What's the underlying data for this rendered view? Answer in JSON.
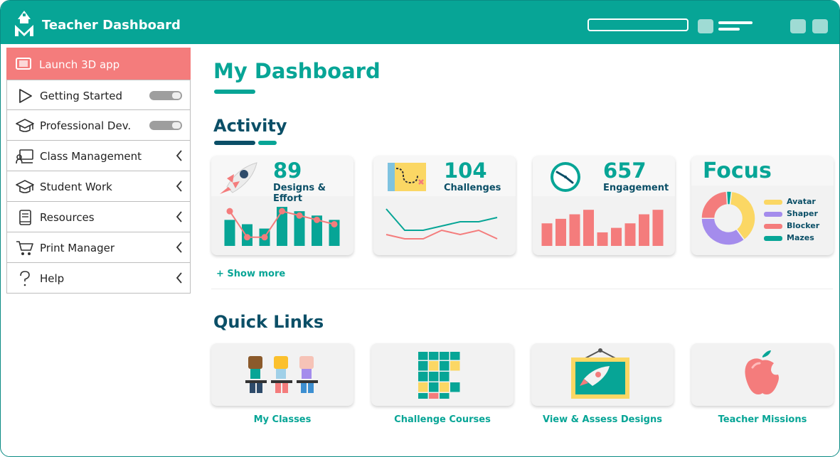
{
  "app": {
    "title": "Teacher Dashboard"
  },
  "sidebar": {
    "items": [
      {
        "label": "Launch 3D app",
        "icon": "monitor-icon"
      },
      {
        "label": "Getting Started",
        "icon": "play-icon",
        "control": "toggle"
      },
      {
        "label": "Professional Dev.",
        "icon": "graduation-cap-icon",
        "control": "toggle"
      },
      {
        "label": "Class Management",
        "icon": "teacher-board-icon",
        "control": "chevron"
      },
      {
        "label": "Student Work",
        "icon": "graduation-cap-icon",
        "control": "chevron"
      },
      {
        "label": "Resources",
        "icon": "book-icon",
        "control": "chevron"
      },
      {
        "label": "Print Manager",
        "icon": "cart-icon",
        "control": "chevron"
      },
      {
        "label": "Help",
        "icon": "question-icon",
        "control": "chevron"
      }
    ]
  },
  "main": {
    "title": "My Dashboard",
    "activity": {
      "title": "Activity",
      "cards": [
        {
          "value": "89",
          "label": "Designs & Effort",
          "icon": "rocket-icon"
        },
        {
          "value": "104",
          "label": "Challenges",
          "icon": "map-icon"
        },
        {
          "value": "657",
          "label": "Engagement",
          "icon": "clock-icon"
        }
      ],
      "focus": {
        "title": "Focus",
        "legend": [
          "Avatar",
          "Shaper",
          "Blocker",
          "Mazes"
        ]
      },
      "show_more": "+ Show more"
    },
    "quick_links": {
      "title": "Quick Links",
      "items": [
        {
          "label": "My Classes",
          "icon": "students-icon"
        },
        {
          "label": "Challenge Courses",
          "icon": "grid-blocks-icon"
        },
        {
          "label": "View & Assess Designs",
          "icon": "rocket-frame-icon"
        },
        {
          "label": "Teacher Missions",
          "icon": "apple-icon"
        }
      ]
    }
  },
  "colors": {
    "brand_teal": "#07a596",
    "navy": "#0b4f67",
    "coral": "#f47c7c",
    "yellow": "#fbd764",
    "purple": "#a48cec"
  },
  "chart_data": [
    {
      "type": "bar",
      "series": [
        {
          "type": "bar",
          "values": [
            6,
            5,
            4,
            9,
            8,
            7,
            6
          ]
        },
        {
          "type": "line",
          "values": [
            8,
            2,
            2,
            8,
            7,
            6,
            5
          ]
        }
      ]
    },
    {
      "type": "line",
      "series": [
        {
          "values": [
            9,
            4,
            4,
            5,
            6,
            6,
            7
          ]
        },
        {
          "values": [
            3,
            2,
            2,
            4,
            3,
            4,
            2
          ]
        }
      ]
    },
    {
      "type": "bar",
      "values": [
        5,
        6,
        7,
        8,
        3,
        4,
        5,
        7,
        8
      ]
    },
    {
      "type": "pie",
      "categories": [
        "Avatar",
        "Shaper",
        "Blocker",
        "Mazes"
      ],
      "values": [
        38,
        35,
        24,
        3
      ]
    }
  ]
}
